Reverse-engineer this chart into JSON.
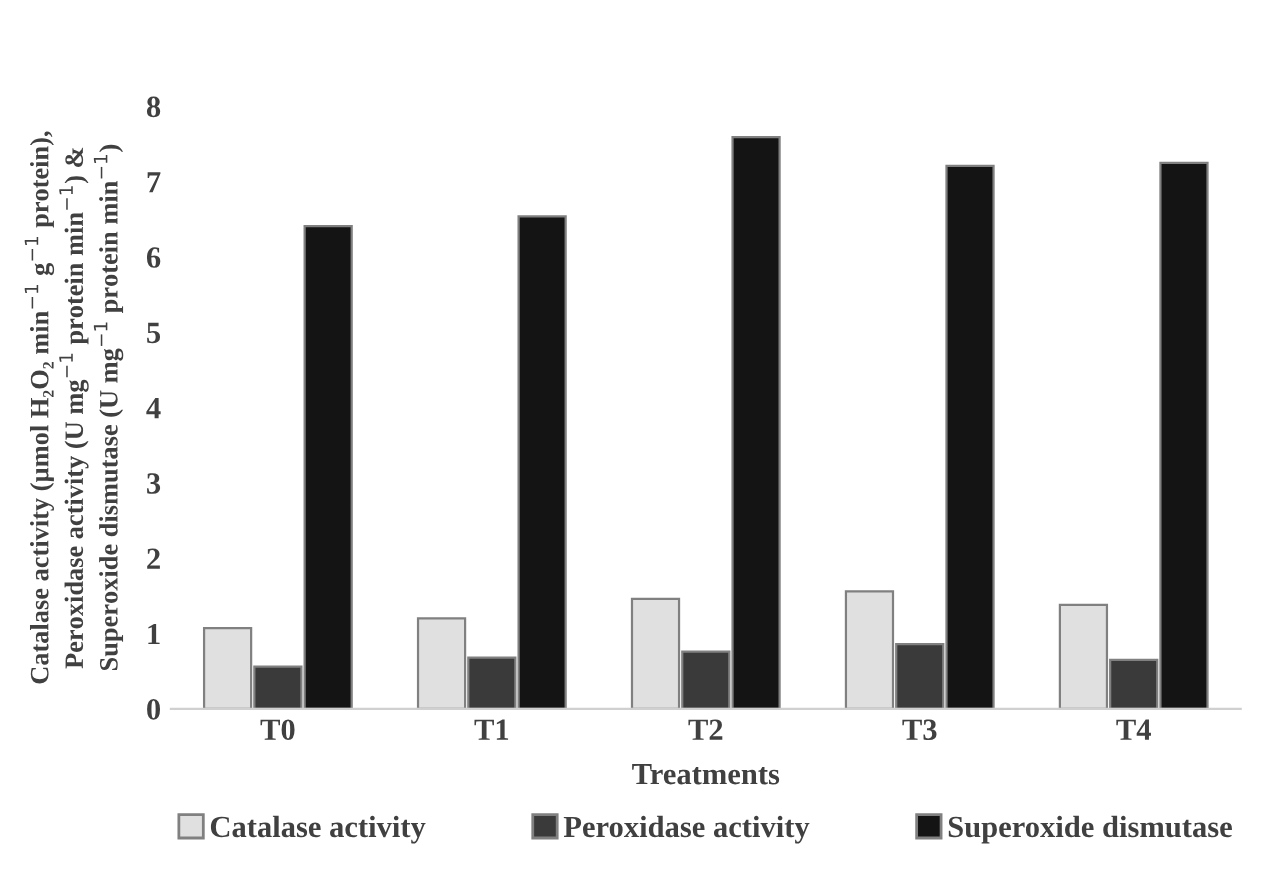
{
  "chart_data": {
    "type": "bar",
    "xlabel": "Treatments",
    "ylabel": "Catalase activity (µmol H₂O₂ min$^{−1}$ g$^{−1}$ protein),\nPeroxidase activity (U mg$^{−1}$ protein min$^{−1}$) &\nSuperoxide dismutase (U mg$^{−1}$ protein min$^{−1}$)",
    "categories": [
      "T0",
      "T1",
      "T2",
      "T3",
      "T4"
    ],
    "series": [
      {
        "name": "Catalase activity",
        "color": "#e0e0e0",
        "values": [
          1.07,
          1.2,
          1.46,
          1.56,
          1.38
        ]
      },
      {
        "name": "Peroxidase activity",
        "color": "#3a3a3a",
        "values": [
          0.56,
          0.68,
          0.76,
          0.86,
          0.65
        ]
      },
      {
        "name": "Superoxide dismutase",
        "color": "#141414",
        "values": [
          6.41,
          6.54,
          7.59,
          7.21,
          7.25
        ]
      }
    ],
    "ylim": [
      0,
      8
    ],
    "yticks": [
      0,
      1,
      2,
      3,
      4,
      5,
      6,
      7,
      8
    ],
    "grid": false,
    "legend": "bottom"
  }
}
